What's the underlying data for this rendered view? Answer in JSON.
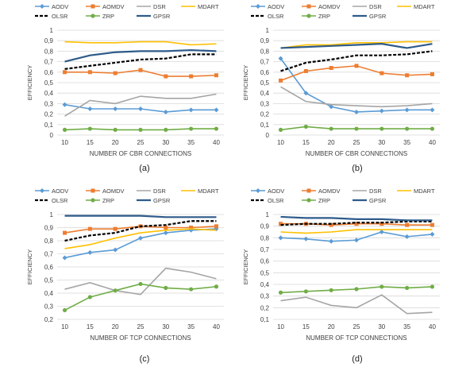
{
  "legend_colors": {
    "AODV": "#5b9bd5",
    "AOMDV": "#ed7d31",
    "DSR": "#a5a5a5",
    "MDART": "#ffc000",
    "OLSR": "#000000",
    "ZRP": "#70ad47",
    "GPSR": "#2e5b8a"
  },
  "chart_data": [
    {
      "type": "line",
      "caption": "(a)",
      "xlabel": "NUMBER OF CBR CONNECTIONS",
      "ylabel": "EFFICIENCY",
      "x": [
        10,
        15,
        20,
        25,
        30,
        35,
        40
      ],
      "ylim": [
        0,
        1
      ],
      "yticks": [
        "0",
        "0,1",
        "0,2",
        "0,3",
        "0,4",
        "0,5",
        "0,6",
        "0,7",
        "0,8",
        "0,9",
        "1"
      ],
      "ytick_values": [
        0,
        0.1,
        0.2,
        0.3,
        0.4,
        0.5,
        0.6,
        0.7,
        0.8,
        0.9,
        1
      ],
      "grid": true,
      "legend": "top",
      "series": [
        {
          "name": "AODV",
          "values": [
            0.29,
            0.25,
            0.25,
            0.25,
            0.22,
            0.24,
            0.24
          ]
        },
        {
          "name": "AOMDV",
          "values": [
            0.6,
            0.6,
            0.59,
            0.62,
            0.56,
            0.56,
            0.57
          ]
        },
        {
          "name": "DSR",
          "values": [
            0.18,
            0.33,
            0.3,
            0.37,
            0.35,
            0.35,
            0.39
          ]
        },
        {
          "name": "MDART",
          "values": [
            0.89,
            0.88,
            0.88,
            0.89,
            0.89,
            0.86,
            0.87
          ]
        },
        {
          "name": "OLSR",
          "values": [
            0.63,
            0.66,
            0.69,
            0.72,
            0.73,
            0.77,
            0.77
          ]
        },
        {
          "name": "ZRP",
          "values": [
            0.05,
            0.06,
            0.05,
            0.05,
            0.05,
            0.06,
            0.06
          ]
        },
        {
          "name": "GPSR",
          "values": [
            0.7,
            0.76,
            0.79,
            0.8,
            0.8,
            0.81,
            0.8
          ]
        }
      ]
    },
    {
      "type": "line",
      "caption": "(b)",
      "xlabel": "NUMBER OF CBR CONNECTIONS",
      "ylabel": "EFFICIENCY",
      "x": [
        10,
        15,
        20,
        25,
        30,
        35,
        40
      ],
      "ylim": [
        0,
        1
      ],
      "yticks": [
        "0",
        "0,1",
        "0,2",
        "0,3",
        "0,4",
        "0,5",
        "0,6",
        "0,7",
        "0,8",
        "0,9",
        "1"
      ],
      "ytick_values": [
        0,
        0.1,
        0.2,
        0.3,
        0.4,
        0.5,
        0.6,
        0.7,
        0.8,
        0.9,
        1
      ],
      "grid": true,
      "legend": "top",
      "series": [
        {
          "name": "AODV",
          "values": [
            0.73,
            0.4,
            0.27,
            0.22,
            0.23,
            0.24,
            0.24
          ]
        },
        {
          "name": "AOMDV",
          "values": [
            0.52,
            0.61,
            0.64,
            0.66,
            0.59,
            0.57,
            0.58
          ]
        },
        {
          "name": "DSR",
          "values": [
            0.46,
            0.32,
            0.29,
            0.28,
            0.27,
            0.28,
            0.3
          ]
        },
        {
          "name": "MDART",
          "values": [
            0.83,
            0.86,
            0.86,
            0.88,
            0.88,
            0.89,
            0.89
          ]
        },
        {
          "name": "OLSR",
          "values": [
            0.61,
            0.69,
            0.72,
            0.76,
            0.76,
            0.77,
            0.8
          ]
        },
        {
          "name": "ZRP",
          "values": [
            0.05,
            0.08,
            0.06,
            0.06,
            0.06,
            0.06,
            0.06
          ]
        },
        {
          "name": "GPSR",
          "values": [
            0.83,
            0.84,
            0.85,
            0.86,
            0.87,
            0.83,
            0.87
          ]
        }
      ]
    },
    {
      "type": "line",
      "caption": "(c)",
      "xlabel": "NUMBER OF TCP CONNECTIONS",
      "ylabel": "EFFICIENCY",
      "x": [
        10,
        15,
        20,
        25,
        30,
        35,
        40
      ],
      "ylim": [
        0.2,
        1
      ],
      "yticks": [
        "0,2",
        "0,3",
        "0,4",
        "0,5",
        "0,6",
        "0,7",
        "0,8",
        "0,9",
        "1"
      ],
      "ytick_values": [
        0.2,
        0.3,
        0.4,
        0.5,
        0.6,
        0.7,
        0.8,
        0.9,
        1
      ],
      "grid": true,
      "legend": "top",
      "series": [
        {
          "name": "AODV",
          "values": [
            0.67,
            0.71,
            0.73,
            0.82,
            0.86,
            0.88,
            0.89
          ]
        },
        {
          "name": "AOMDV",
          "values": [
            0.86,
            0.89,
            0.89,
            0.91,
            0.9,
            0.9,
            0.91
          ]
        },
        {
          "name": "DSR",
          "values": [
            0.43,
            0.48,
            0.42,
            0.39,
            0.59,
            0.56,
            0.51
          ]
        },
        {
          "name": "MDART",
          "values": [
            0.74,
            0.77,
            0.82,
            0.86,
            0.88,
            0.89,
            0.88
          ]
        },
        {
          "name": "OLSR",
          "values": [
            0.8,
            0.84,
            0.86,
            0.91,
            0.92,
            0.95,
            0.95
          ]
        },
        {
          "name": "ZRP",
          "values": [
            0.27,
            0.37,
            0.42,
            0.47,
            0.44,
            0.43,
            0.45
          ]
        },
        {
          "name": "GPSR",
          "values": [
            0.99,
            0.99,
            0.99,
            0.99,
            0.98,
            0.98,
            0.98
          ]
        }
      ]
    },
    {
      "type": "line",
      "caption": "(d)",
      "xlabel": "NUMBER OF TCP CONNECTIONS",
      "ylabel": "EFFICIENCY",
      "x": [
        10,
        15,
        20,
        25,
        30,
        35,
        40
      ],
      "ylim": [
        0.1,
        1
      ],
      "yticks": [
        "0,1",
        "0,2",
        "0,3",
        "0,4",
        "0,5",
        "0,6",
        "0,7",
        "0,8",
        "0,9",
        "1"
      ],
      "ytick_values": [
        0.1,
        0.2,
        0.3,
        0.4,
        0.5,
        0.6,
        0.7,
        0.8,
        0.9,
        1
      ],
      "grid": true,
      "legend": "top",
      "series": [
        {
          "name": "AODV",
          "values": [
            0.8,
            0.79,
            0.77,
            0.78,
            0.85,
            0.81,
            0.83
          ]
        },
        {
          "name": "AOMDV",
          "values": [
            0.92,
            0.92,
            0.91,
            0.92,
            0.92,
            0.91,
            0.91
          ]
        },
        {
          "name": "DSR",
          "values": [
            0.26,
            0.29,
            0.22,
            0.2,
            0.31,
            0.15,
            0.16
          ]
        },
        {
          "name": "MDART",
          "values": [
            0.85,
            0.84,
            0.85,
            0.87,
            0.87,
            0.87,
            0.87
          ]
        },
        {
          "name": "OLSR",
          "values": [
            0.91,
            0.92,
            0.92,
            0.93,
            0.93,
            0.94,
            0.94
          ]
        },
        {
          "name": "ZRP",
          "values": [
            0.33,
            0.34,
            0.35,
            0.36,
            0.38,
            0.37,
            0.38
          ]
        },
        {
          "name": "GPSR",
          "values": [
            0.98,
            0.97,
            0.97,
            0.96,
            0.96,
            0.95,
            0.95
          ]
        }
      ]
    }
  ]
}
